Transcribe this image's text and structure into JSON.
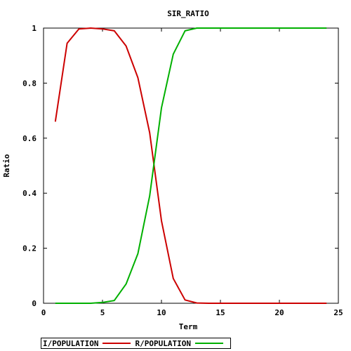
{
  "chart_data": {
    "type": "line",
    "title": "SIR_RATIO",
    "xlabel": "Term",
    "ylabel": "Ratio",
    "xlim": [
      0,
      25
    ],
    "ylim": [
      0,
      1
    ],
    "xticks": [
      0,
      5,
      10,
      15,
      20,
      25
    ],
    "yticks": [
      0,
      0.2,
      0.4,
      0.6,
      0.8,
      1
    ],
    "ytick_labels": [
      "0",
      "0.2",
      "0.4",
      "0.6",
      "0.8",
      "1"
    ],
    "grid": false,
    "legend_position": "bottom-left",
    "x": [
      1,
      2,
      3,
      4,
      5,
      6,
      7,
      8,
      9,
      10,
      11,
      12,
      13,
      14,
      15,
      16,
      17,
      18,
      19,
      20,
      21,
      22,
      23,
      24
    ],
    "series": [
      {
        "name": "I/POPULATION",
        "color": "#cc0000",
        "values": [
          0.66,
          0.945,
          0.997,
          1.0,
          0.997,
          0.99,
          0.935,
          0.82,
          0.62,
          0.3,
          0.09,
          0.012,
          0.001,
          0,
          0,
          0,
          0,
          0,
          0,
          0,
          0,
          0,
          0,
          0
        ]
      },
      {
        "name": "R/POPULATION",
        "color": "#00b000",
        "values": [
          0,
          0,
          0,
          0,
          0.003,
          0.01,
          0.07,
          0.18,
          0.39,
          0.71,
          0.905,
          0.99,
          1.0,
          1.0,
          1.0,
          1.0,
          1.0,
          1.0,
          1.0,
          1.0,
          1.0,
          1.0,
          1.0,
          1.0
        ]
      }
    ]
  }
}
